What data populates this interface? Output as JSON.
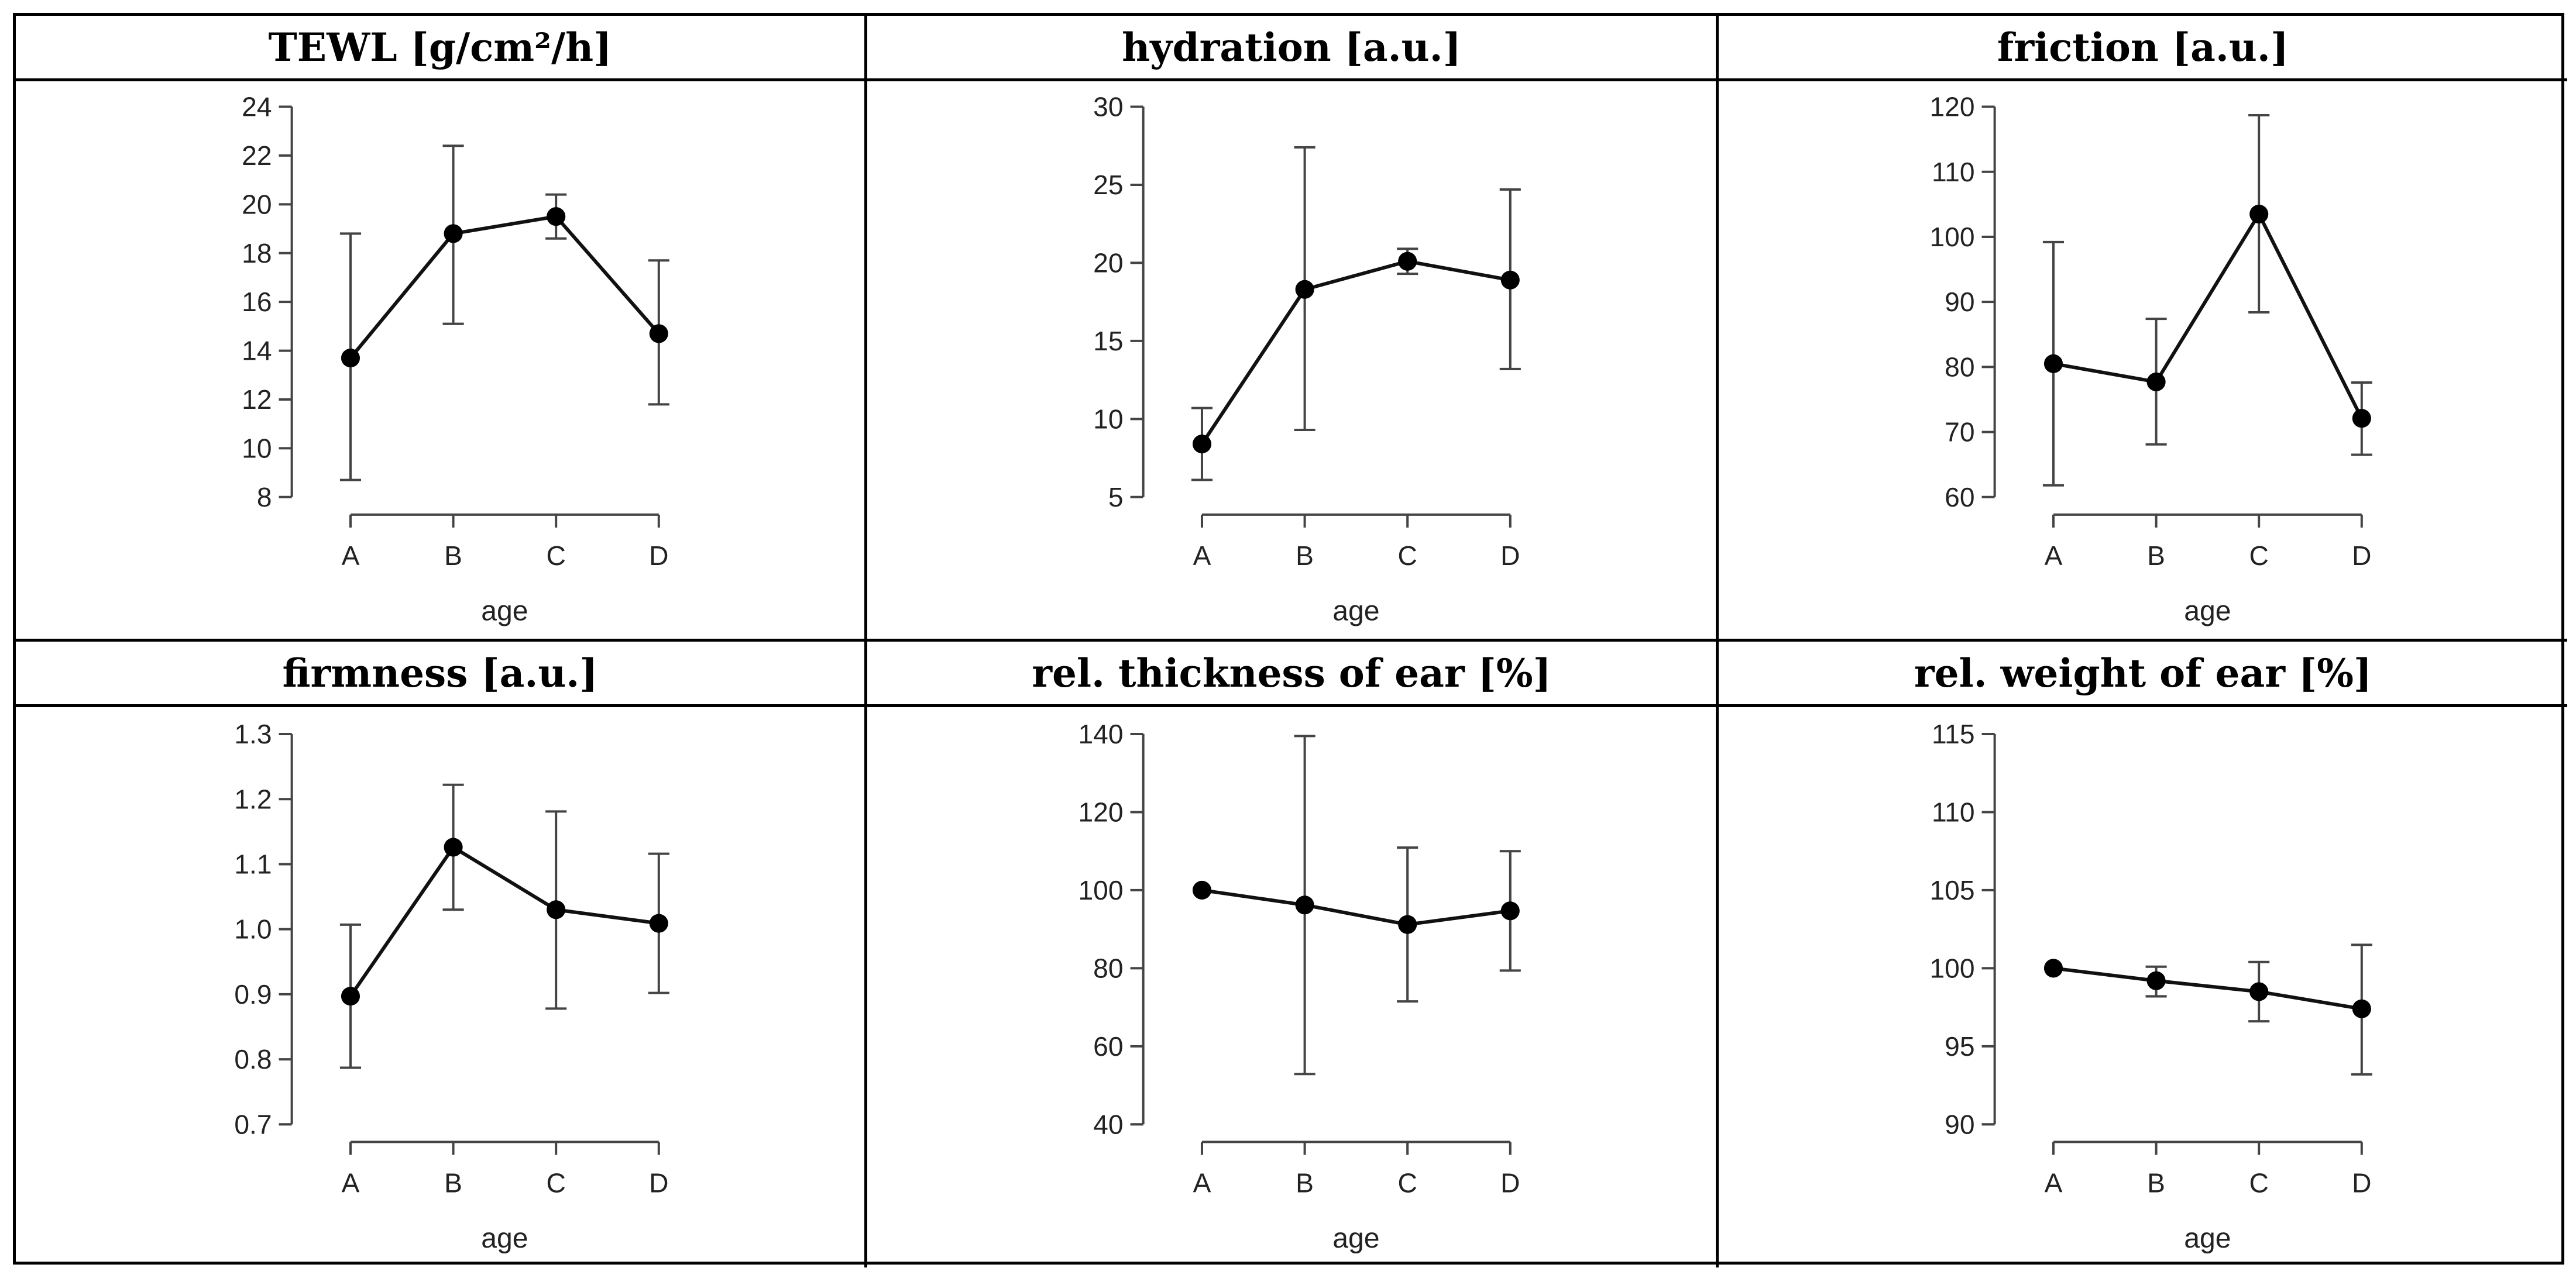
{
  "chart_data": [
    {
      "type": "line",
      "title": "TEWL [g/cm²/h]",
      "xlabel": "age",
      "ylabel": "",
      "categories": [
        "A",
        "B",
        "C",
        "D"
      ],
      "values": [
        13.7,
        18.8,
        19.5,
        14.7
      ],
      "error_low": [
        8.7,
        15.1,
        18.6,
        11.8
      ],
      "error_high": [
        18.8,
        22.4,
        20.4,
        17.7
      ],
      "ylim": [
        8,
        24
      ],
      "yticks": [
        8,
        10,
        12,
        14,
        16,
        18,
        20,
        22,
        24
      ],
      "ytick_labels": [
        "8",
        "10",
        "12",
        "14",
        "16",
        "18",
        "20",
        "22",
        "24"
      ]
    },
    {
      "type": "line",
      "title": "hydration [a.u.]",
      "xlabel": "age",
      "ylabel": "",
      "categories": [
        "A",
        "B",
        "C",
        "D"
      ],
      "values": [
        8.4,
        18.3,
        20.1,
        18.9
      ],
      "error_low": [
        6.1,
        9.3,
        19.3,
        13.2
      ],
      "error_high": [
        10.7,
        27.4,
        20.9,
        24.7
      ],
      "ylim": [
        5,
        30
      ],
      "yticks": [
        5,
        10,
        15,
        20,
        25,
        30
      ],
      "ytick_labels": [
        "5",
        "10",
        "15",
        "20",
        "25",
        "30"
      ]
    },
    {
      "type": "line",
      "title": "friction [a.u.]",
      "xlabel": "age",
      "ylabel": "",
      "categories": [
        "A",
        "B",
        "C",
        "D"
      ],
      "values": [
        80.5,
        77.7,
        103.5,
        72.1
      ],
      "error_low": [
        61.8,
        68.1,
        88.4,
        66.5
      ],
      "error_high": [
        99.2,
        87.4,
        118.7,
        77.6
      ],
      "ylim": [
        60,
        120
      ],
      "yticks": [
        60,
        70,
        80,
        90,
        100,
        110,
        120
      ],
      "ytick_labels": [
        "60",
        "70",
        "80",
        "90",
        "100",
        "110",
        "120"
      ]
    },
    {
      "type": "line",
      "title": "firmness [a.u.]",
      "xlabel": "age",
      "ylabel": "",
      "categories": [
        "A",
        "B",
        "C",
        "D"
      ],
      "values": [
        0.897,
        1.126,
        1.03,
        1.009
      ],
      "error_low": [
        0.787,
        1.03,
        0.878,
        0.902
      ],
      "error_high": [
        1.007,
        1.222,
        1.181,
        1.116
      ],
      "ylim": [
        0.7,
        1.3
      ],
      "yticks": [
        0.7,
        0.8,
        0.9,
        1.0,
        1.1,
        1.2,
        1.3
      ],
      "ytick_labels": [
        "0.7",
        "0.8",
        "0.9",
        "1.0",
        "1.1",
        "1.2",
        "1.3"
      ]
    },
    {
      "type": "line",
      "title": "rel. thickness of ear [%]",
      "xlabel": "age",
      "ylabel": "",
      "categories": [
        "A",
        "B",
        "C",
        "D"
      ],
      "values": [
        100,
        96.2,
        91.2,
        94.7
      ],
      "error_low": [
        100,
        52.9,
        71.5,
        79.4
      ],
      "error_high": [
        100,
        139.5,
        110.9,
        110.0
      ],
      "ylim": [
        40,
        140
      ],
      "yticks": [
        40,
        60,
        80,
        100,
        120,
        140
      ],
      "ytick_labels": [
        "40",
        "60",
        "80",
        "100",
        "120",
        "140"
      ]
    },
    {
      "type": "line",
      "title": "rel. weight of ear [%]",
      "xlabel": "age",
      "ylabel": "",
      "categories": [
        "A",
        "B",
        "C",
        "D"
      ],
      "values": [
        100,
        99.2,
        98.5,
        97.4
      ],
      "error_low": [
        100,
        98.2,
        96.6,
        93.2
      ],
      "error_high": [
        100,
        100.1,
        100.4,
        101.5
      ],
      "ylim": [
        90,
        115
      ],
      "yticks": [
        90,
        95,
        100,
        105,
        110,
        115
      ],
      "ytick_labels": [
        "90",
        "95",
        "100",
        "105",
        "110",
        "115"
      ]
    }
  ]
}
